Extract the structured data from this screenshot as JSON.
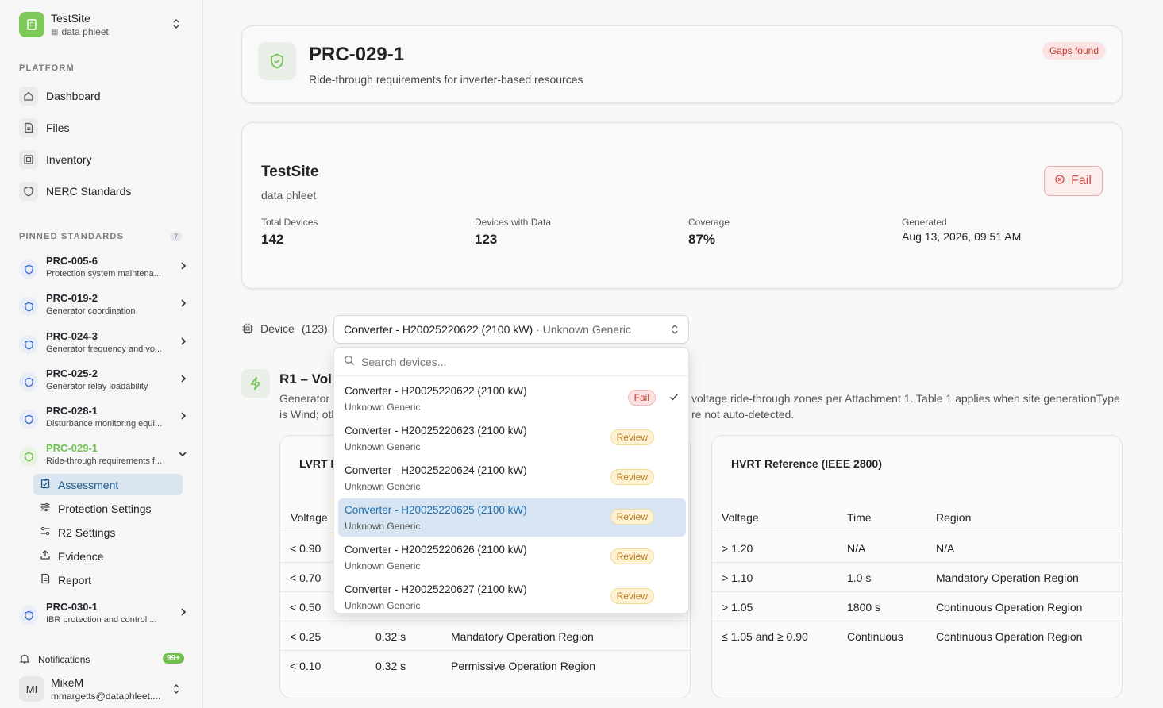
{
  "site": {
    "name": "TestSite",
    "sub": "data phleet"
  },
  "sidebar": {
    "platform_label": "PLATFORM",
    "nav": [
      {
        "label": "Dashboard"
      },
      {
        "label": "Files"
      },
      {
        "label": "Inventory"
      },
      {
        "label": "NERC Standards"
      }
    ],
    "pinned_label": "PINNED STANDARDS",
    "pinned_count": "7",
    "pinned": [
      {
        "code": "PRC-005-6",
        "desc": "Protection system maintena..."
      },
      {
        "code": "PRC-019-2",
        "desc": "Generator coordination"
      },
      {
        "code": "PRC-024-3",
        "desc": "Generator frequency and vo..."
      },
      {
        "code": "PRC-025-2",
        "desc": "Generator relay loadability"
      },
      {
        "code": "PRC-028-1",
        "desc": "Disturbance monitoring equi..."
      },
      {
        "code": "PRC-029-1",
        "desc": "Ride-through requirements f..."
      },
      {
        "code": "PRC-030-1",
        "desc": "IBR protection and control ..."
      }
    ],
    "sub": [
      {
        "label": "Assessment"
      },
      {
        "label": "Protection Settings"
      },
      {
        "label": "R2 Settings"
      },
      {
        "label": "Evidence"
      },
      {
        "label": "Report"
      }
    ],
    "notifications_label": "Notifications",
    "notifications_count": "99+",
    "user": {
      "initials": "MI",
      "name": "MikeM",
      "email": "mmargetts@dataphleet...."
    }
  },
  "header": {
    "title": "PRC-029-1",
    "subtitle": "Ride-through requirements for inverter-based resources",
    "badge": "Gaps found"
  },
  "summary": {
    "site": "TestSite",
    "sub": "data phleet",
    "status": "Fail",
    "stats": [
      {
        "label": "Total Devices",
        "value": "142"
      },
      {
        "label": "Devices with Data",
        "value": "123"
      },
      {
        "label": "Coverage",
        "value": "87%"
      },
      {
        "label": "Generated",
        "value": "Aug 13, 2026, 09:51 AM"
      }
    ]
  },
  "device": {
    "label": "Device",
    "count": "(123)",
    "selected": "Converter - H20025220622 (2100 kW)",
    "selected_sep": " · ",
    "selected_type": "Unknown Generic",
    "search_placeholder": "Search devices...",
    "options": [
      {
        "name": "Converter - H20025220622 (2100 kW)",
        "type": "Unknown Generic",
        "status": "Fail"
      },
      {
        "name": "Converter - H20025220623 (2100 kW)",
        "type": "Unknown Generic",
        "status": "Review"
      },
      {
        "name": "Converter - H20025220624 (2100 kW)",
        "type": "Unknown Generic",
        "status": "Review"
      },
      {
        "name": "Converter - H20025220625 (2100 kW)",
        "type": "Unknown Generic",
        "status": "Review"
      },
      {
        "name": "Converter - H20025220626 (2100 kW)",
        "type": "Unknown Generic",
        "status": "Review"
      },
      {
        "name": "Converter - H20025220627 (2100 kW)",
        "type": "Unknown Generic",
        "status": "Review"
      }
    ]
  },
  "r1": {
    "title": "R1 – Vol",
    "line1a": "Generator",
    "line1b": "voltage ride-through zones per Attachment 1. Table 1 applies when site generationType",
    "line2a": "is Wind; oth",
    "line2b": "re not auto-detected."
  },
  "lvrt": {
    "title": "LVRT I",
    "head": [
      "Voltage"
    ],
    "rows": [
      {
        "v": "< 0.90",
        "t": "",
        "r": ""
      },
      {
        "v": "< 0.70",
        "t": "",
        "r": ""
      },
      {
        "v": "< 0.50",
        "t": "",
        "r": ""
      },
      {
        "v": "< 0.25",
        "t": "0.32 s",
        "r": "Mandatory Operation Region"
      },
      {
        "v": "< 0.10",
        "t": "0.32 s",
        "r": "Permissive Operation Region"
      }
    ]
  },
  "hvrt": {
    "title": "HVRT Reference (IEEE 2800)",
    "head": [
      "Voltage",
      "Time",
      "Region"
    ],
    "rows": [
      {
        "v": "> 1.20",
        "t": "N/A",
        "r": "N/A"
      },
      {
        "v": "> 1.10",
        "t": "1.0 s",
        "r": "Mandatory Operation Region"
      },
      {
        "v": "> 1.05",
        "t": "1800 s",
        "r": "Continuous Operation Region"
      },
      {
        "v": "≤ 1.05 and ≥ 0.90",
        "t": "Continuous",
        "r": "Continuous Operation Region"
      }
    ]
  },
  "colors": {
    "accent": "#7dc95a",
    "fail": "#d64545",
    "review": "#b7791f",
    "highlight": "#d6e5f1"
  }
}
